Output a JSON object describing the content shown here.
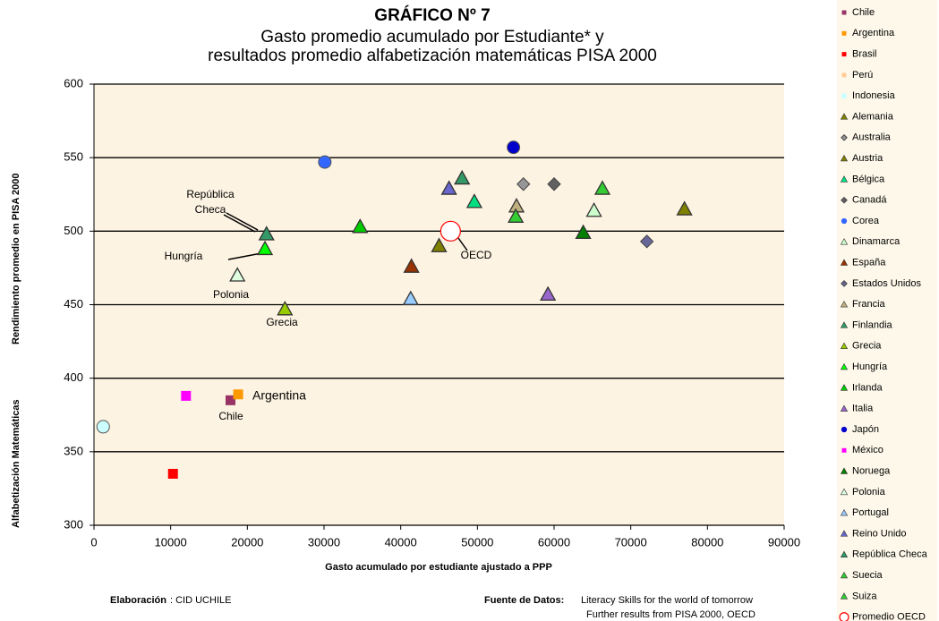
{
  "chart_data": {
    "type": "scatter",
    "title": "GRÁFICO Nº 7",
    "subtitle": [
      "Gasto promedio acumulado por Estudiante* y",
      "resultados promedio alfabetización matemáticas PISA 2000"
    ],
    "xlabel": "Gasto acumulado por estudiante ajustado a PPP",
    "ylabel": [
      "Alfabetización Matemáticas",
      "Rendimiento promedio en PISA  2000"
    ],
    "xlim": [
      0,
      90000
    ],
    "xticks": [
      0,
      10000,
      20000,
      30000,
      40000,
      50000,
      60000,
      70000,
      80000,
      90000
    ],
    "ylim": [
      300,
      600
    ],
    "yticks": [
      300,
      350,
      400,
      450,
      500,
      550,
      600
    ],
    "grid": true,
    "legend": "right",
    "series": [
      {
        "name": "Chile",
        "color": "#993366",
        "marker": "square",
        "x": [
          17800
        ],
        "y": [
          385
        ]
      },
      {
        "name": "Argentina",
        "color": "#ff9900",
        "marker": "square",
        "x": [
          18800
        ],
        "y": [
          389
        ]
      },
      {
        "name": "Brasil",
        "color": "#ff0000",
        "marker": "square",
        "x": [
          10300
        ],
        "y": [
          335
        ]
      },
      {
        "name": "Perú",
        "color": "#ffcc99",
        "marker": "square",
        "x": [],
        "y": []
      },
      {
        "name": "Indonesia",
        "color": "#ccffff",
        "marker": "circle",
        "x": [
          1200
        ],
        "y": [
          367
        ]
      },
      {
        "name": "Alemania",
        "color": "#808000",
        "marker": "triangle",
        "x": [
          45000
        ],
        "y": [
          490
        ]
      },
      {
        "name": "Australia",
        "color": "#969696",
        "marker": "diamond",
        "x": [
          56000
        ],
        "y": [
          532
        ]
      },
      {
        "name": "Austria",
        "color": "#808000",
        "marker": "triangle",
        "x": [
          77000
        ],
        "y": [
          515
        ]
      },
      {
        "name": "Bélgica",
        "color": "#00e080",
        "marker": "triangle",
        "x": [
          49600
        ],
        "y": [
          520
        ]
      },
      {
        "name": "Canadá",
        "color": "#606060",
        "marker": "diamond",
        "x": [
          60000
        ],
        "y": [
          532
        ]
      },
      {
        "name": "Corea",
        "color": "#3366ff",
        "marker": "circle",
        "x": [
          30100
        ],
        "y": [
          547
        ]
      },
      {
        "name": "Dinamarca",
        "color": "#ccffcc",
        "marker": "triangle",
        "x": [
          65200
        ],
        "y": [
          514
        ]
      },
      {
        "name": "España",
        "color": "#993300",
        "marker": "triangle",
        "x": [
          41400
        ],
        "y": [
          476
        ]
      },
      {
        "name": "Estados Unidos",
        "color": "#666699",
        "marker": "diamond",
        "x": [
          72100
        ],
        "y": [
          493
        ]
      },
      {
        "name": "Francia",
        "color": "#c0b080",
        "marker": "triangle",
        "x": [
          55100
        ],
        "y": [
          517
        ]
      },
      {
        "name": "Finlandia",
        "color": "#339966",
        "marker": "triangle",
        "x": [
          48000
        ],
        "y": [
          536
        ]
      },
      {
        "name": "Grecia",
        "color": "#99cc00",
        "marker": "triangle",
        "x": [
          24900
        ],
        "y": [
          447
        ]
      },
      {
        "name": "Hungría",
        "color": "#00ff00",
        "marker": "triangle",
        "x": [
          22300
        ],
        "y": [
          488
        ]
      },
      {
        "name": "Irlanda",
        "color": "#00cc00",
        "marker": "triangle",
        "x": [
          34700
        ],
        "y": [
          503
        ]
      },
      {
        "name": "Italia",
        "color": "#9966cc",
        "marker": "triangle",
        "x": [
          59200
        ],
        "y": [
          457
        ]
      },
      {
        "name": "Japón",
        "color": "#0000cc",
        "marker": "circle",
        "x": [
          54700
        ],
        "y": [
          557
        ]
      },
      {
        "name": "México",
        "color": "#ff00ff",
        "marker": "square",
        "x": [
          12000
        ],
        "y": [
          388
        ]
      },
      {
        "name": "Noruega",
        "color": "#008000",
        "marker": "triangle",
        "x": [
          63800
        ],
        "y": [
          499
        ]
      },
      {
        "name": "Polonia",
        "color": "#e0ffe0",
        "marker": "triangle",
        "x": [
          18700
        ],
        "y": [
          470
        ]
      },
      {
        "name": "Portugal",
        "color": "#99ccff",
        "marker": "triangle",
        "x": [
          41300
        ],
        "y": [
          454
        ]
      },
      {
        "name": "Reino Unido",
        "color": "#6666cc",
        "marker": "triangle",
        "x": [
          46300
        ],
        "y": [
          529
        ]
      },
      {
        "name": "República Checa",
        "color": "#339966",
        "marker": "triangle",
        "x": [
          22500
        ],
        "y": [
          498
        ]
      },
      {
        "name": "Suecia",
        "color": "#33cc33",
        "marker": "triangle",
        "x": [
          55000
        ],
        "y": [
          510
        ]
      },
      {
        "name": "Suiza",
        "color": "#33cc33",
        "marker": "triangle",
        "x": [
          66300
        ],
        "y": [
          529
        ]
      },
      {
        "name": "Promedio OECD",
        "color": "#ff0000",
        "marker": "ring",
        "x": [
          46500
        ],
        "y": [
          500
        ]
      }
    ],
    "annotations": [
      {
        "lines": [
          "República",
          "Checa"
        ]
      },
      {
        "lines": [
          "Hungría"
        ]
      },
      {
        "lines": [
          "Polonia"
        ]
      },
      {
        "lines": [
          "Grecia"
        ]
      },
      {
        "lines": [
          "Argentina"
        ]
      },
      {
        "lines": [
          "Chile"
        ]
      },
      {
        "lines": [
          "OECD"
        ]
      }
    ],
    "footer": {
      "left_label": "Elaboración",
      "left_text": ": CID UCHILE",
      "source_label": "Fuente de Datos:",
      "source_lines": [
        "Literacy Skills for the world of tomorrow",
        "Further results from PISA 2000, OECD"
      ]
    }
  }
}
